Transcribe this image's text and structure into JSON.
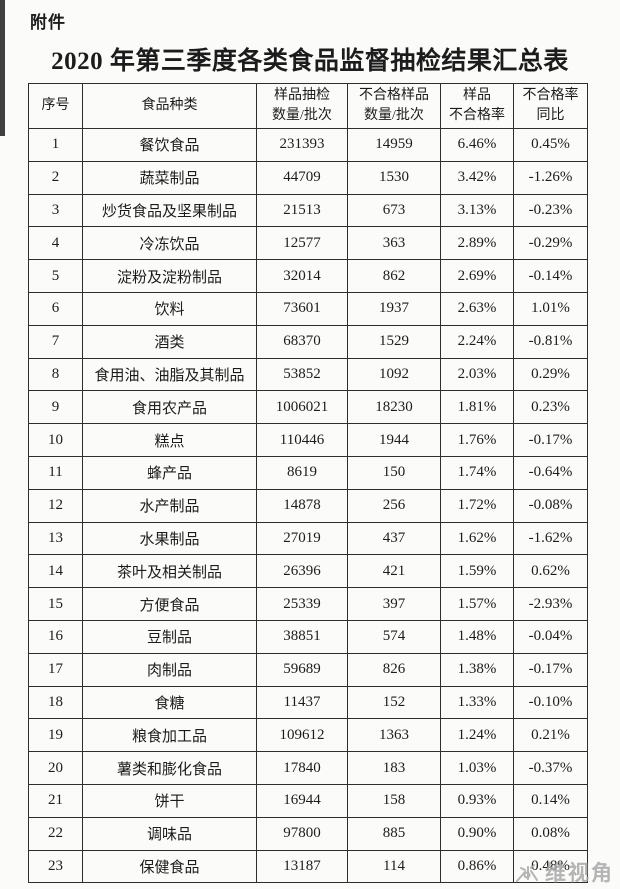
{
  "page": {
    "attachment_label": "附件",
    "title": "2020 年第三季度各类食品监督抽检结果汇总表"
  },
  "table": {
    "columns": [
      {
        "lines": [
          "序号"
        ]
      },
      {
        "lines": [
          "食品种类"
        ]
      },
      {
        "lines": [
          "样品抽检",
          "数量/批次"
        ]
      },
      {
        "lines": [
          "不合格样品",
          "数量/批次"
        ]
      },
      {
        "lines": [
          "样品",
          "不合格率"
        ]
      },
      {
        "lines": [
          "不合格率",
          "同比"
        ]
      }
    ],
    "rows": [
      [
        "1",
        "餐饮食品",
        "231393",
        "14959",
        "6.46%",
        "0.45%"
      ],
      [
        "2",
        "蔬菜制品",
        "44709",
        "1530",
        "3.42%",
        "-1.26%"
      ],
      [
        "3",
        "炒货食品及坚果制品",
        "21513",
        "673",
        "3.13%",
        "-0.23%"
      ],
      [
        "4",
        "冷冻饮品",
        "12577",
        "363",
        "2.89%",
        "-0.29%"
      ],
      [
        "5",
        "淀粉及淀粉制品",
        "32014",
        "862",
        "2.69%",
        "-0.14%"
      ],
      [
        "6",
        "饮料",
        "73601",
        "1937",
        "2.63%",
        "1.01%"
      ],
      [
        "7",
        "酒类",
        "68370",
        "1529",
        "2.24%",
        "-0.81%"
      ],
      [
        "8",
        "食用油、油脂及其制品",
        "53852",
        "1092",
        "2.03%",
        "0.29%"
      ],
      [
        "9",
        "食用农产品",
        "1006021",
        "18230",
        "1.81%",
        "0.23%"
      ],
      [
        "10",
        "糕点",
        "110446",
        "1944",
        "1.76%",
        "-0.17%"
      ],
      [
        "11",
        "蜂产品",
        "8619",
        "150",
        "1.74%",
        "-0.64%"
      ],
      [
        "12",
        "水产制品",
        "14878",
        "256",
        "1.72%",
        "-0.08%"
      ],
      [
        "13",
        "水果制品",
        "27019",
        "437",
        "1.62%",
        "-1.62%"
      ],
      [
        "14",
        "茶叶及相关制品",
        "26396",
        "421",
        "1.59%",
        "0.62%"
      ],
      [
        "15",
        "方便食品",
        "25339",
        "397",
        "1.57%",
        "-2.93%"
      ],
      [
        "16",
        "豆制品",
        "38851",
        "574",
        "1.48%",
        "-0.04%"
      ],
      [
        "17",
        "肉制品",
        "59689",
        "826",
        "1.38%",
        "-0.17%"
      ],
      [
        "18",
        "食糖",
        "11437",
        "152",
        "1.33%",
        "-0.10%"
      ],
      [
        "19",
        "粮食加工品",
        "109612",
        "1363",
        "1.24%",
        "0.21%"
      ],
      [
        "20",
        "薯类和膨化食品",
        "17840",
        "183",
        "1.03%",
        "-0.37%"
      ],
      [
        "21",
        "饼干",
        "16944",
        "158",
        "0.93%",
        "0.14%"
      ],
      [
        "22",
        "调味品",
        "97800",
        "885",
        "0.90%",
        "0.08%"
      ],
      [
        "23",
        "保健食品",
        "13187",
        "114",
        "0.86%",
        "0.48%"
      ]
    ]
  },
  "watermark": {
    "text": "维视角"
  },
  "colors": {
    "border": "#2e2e2e",
    "text": "#1c1c1c",
    "watermark": "#a8a8a8",
    "paper": "#fbfbf9"
  }
}
